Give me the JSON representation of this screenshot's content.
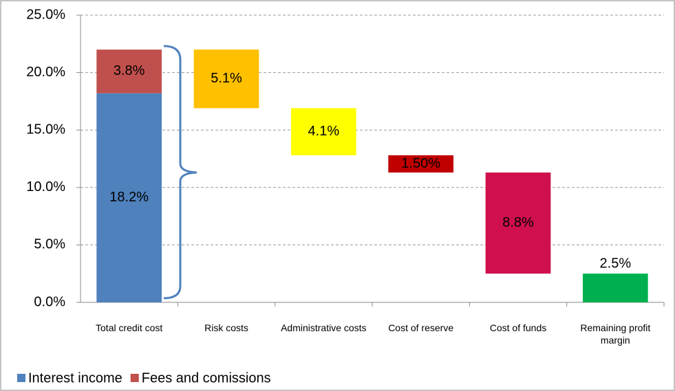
{
  "chart_data": {
    "type": "waterfall",
    "categories": [
      "Total credit cost",
      "Risk costs",
      "Administrative costs",
      "Cost of reserve",
      "Cost of funds",
      "Remaining profit margin"
    ],
    "series": [
      {
        "name": "Interest income",
        "color": "#4f81bd",
        "values": [
          18.2,
          null,
          null,
          null,
          null,
          null
        ],
        "value_labels": [
          "18.2%",
          null,
          null,
          null,
          null,
          null
        ]
      },
      {
        "name": "Fees and comissions",
        "color": "#c0504d",
        "values": [
          3.8,
          null,
          null,
          null,
          null,
          null
        ],
        "value_labels": [
          "3.8%",
          null,
          null,
          null,
          null,
          null
        ]
      }
    ],
    "deductions": {
      "values": [
        null,
        5.1,
        4.1,
        1.5,
        8.8,
        2.5
      ],
      "value_labels": [
        null,
        "5.1%",
        "4.1%",
        "1.50%",
        "8.8%",
        "2.5%"
      ],
      "colors": [
        null,
        "#ffc000",
        "#ffff00",
        "#c00000",
        "#d0104c",
        "#00b050"
      ]
    },
    "ylim": [
      0,
      25
    ],
    "yticks": [
      {
        "value": 0,
        "label": "0.0%"
      },
      {
        "value": 5,
        "label": "5.0%"
      },
      {
        "value": 10,
        "label": "10.0%"
      },
      {
        "value": 15,
        "label": "15.0%"
      },
      {
        "value": 20,
        "label": "20.0%"
      },
      {
        "value": 25,
        "label": "25.0%"
      }
    ],
    "grid": true,
    "legend": "bottom-left"
  }
}
